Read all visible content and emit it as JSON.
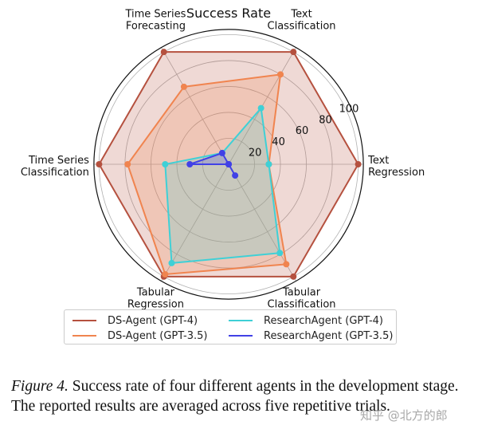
{
  "chart_data": {
    "type": "radar",
    "title": "Success Rate",
    "categories": [
      "Text Regression",
      "Text Classification",
      "Time Series Forecasting",
      "Time Series Classification",
      "Tabular Regression",
      "Tabular Classification"
    ],
    "category_labels": [
      [
        "Text",
        "Regression"
      ],
      [
        "Text",
        "Classification"
      ],
      [
        "Time Series",
        "Forecasting"
      ],
      [
        "Time Series",
        "Classification"
      ],
      [
        "Tabular",
        "Regression"
      ],
      [
        "Tabular",
        "Classification"
      ]
    ],
    "radial_ticks": [
      20,
      40,
      60,
      80,
      100
    ],
    "rlim": [
      0,
      104
    ],
    "grid": true,
    "legend_position": "bottom",
    "series": [
      {
        "name": "DS-Agent (GPT-4)",
        "color": "#b5513f",
        "values": [
          100,
          100,
          100,
          100,
          100,
          100
        ]
      },
      {
        "name": "DS-Agent (GPT-3.5)",
        "color": "#f0844f",
        "values": [
          31,
          80,
          69,
          78,
          98,
          89
        ]
      },
      {
        "name": "ResearchAgent (GPT-4)",
        "color": "#3fd0d6",
        "values": [
          31,
          50,
          10,
          49,
          88,
          79
        ]
      },
      {
        "name": "ResearchAgent (GPT-3.5)",
        "color": "#4141e6",
        "values": [
          0,
          0,
          10,
          30,
          0,
          10
        ]
      }
    ]
  },
  "caption": {
    "figure_label": "Figure 4.",
    "text": " Success rate of four different agents in the development stage. The reported results are averaged across five repetitive trials."
  },
  "watermark": "知乎 @北方的郎"
}
